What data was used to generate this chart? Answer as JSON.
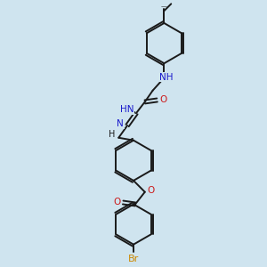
{
  "background_color": "#cfe4ef",
  "bond_color": "#1a1a1a",
  "atom_colors": {
    "N": "#1a1acc",
    "O": "#cc1a1a",
    "Br": "#cc8800",
    "C": "#1a1a1a",
    "H": "#1a1a1a"
  },
  "figsize": [
    3.0,
    3.0
  ],
  "dpi": 100
}
